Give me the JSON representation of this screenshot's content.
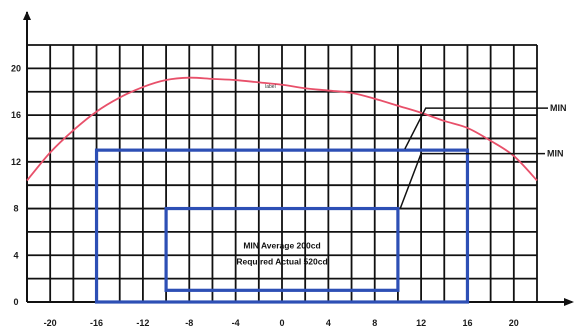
{
  "chart_data": {
    "type": "line",
    "x_ticks": [
      "-20",
      "-16",
      "-12",
      "-8",
      "-4",
      "0",
      "4",
      "8",
      "12",
      "16",
      "20"
    ],
    "y_ticks": [
      "0",
      "4",
      "8",
      "12",
      "16",
      "20"
    ],
    "xlim": [
      -22,
      22
    ],
    "ylim": [
      0,
      22
    ],
    "grid": true,
    "grid_step": 2,
    "series": [
      {
        "color": "#e8506a",
        "x": [
          -22,
          -20,
          -18,
          -16,
          -14,
          -12,
          -10,
          -8,
          -6,
          -4,
          -2,
          0,
          2,
          4,
          6,
          8,
          10,
          12,
          14,
          16,
          18,
          20,
          22
        ],
        "y": [
          10.4,
          12.8,
          14.7,
          16.3,
          17.5,
          18.4,
          19.0,
          19.2,
          19.1,
          19.0,
          18.8,
          18.6,
          18.3,
          18.1,
          17.9,
          17.4,
          16.8,
          16.2,
          15.5,
          14.9,
          13.8,
          12.5,
          10.4
        ],
        "label": "label"
      }
    ],
    "boxes": [
      {
        "x": [
          -16,
          16
        ],
        "y": [
          0,
          13
        ],
        "color": "#2d4fb5"
      },
      {
        "x": [
          -10,
          10
        ],
        "y": [
          1,
          8
        ],
        "color": "#2d4fb5"
      }
    ],
    "callouts": [
      "MIN",
      "MIN"
    ],
    "annotation": [
      "MIN Average 200cd",
      "Required Actual 520cd"
    ]
  }
}
